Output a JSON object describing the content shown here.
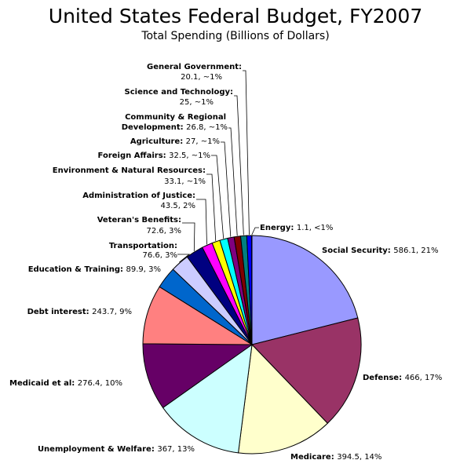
{
  "chart_data": {
    "type": "pie",
    "title": "United States Federal Budget, FY2007",
    "subtitle": "Total Spending (Billions of Dollars)",
    "slices": [
      {
        "label": "Social Security",
        "value": 586.1,
        "text": "586.1, 21%",
        "color": "#9999ff"
      },
      {
        "label": "Defense",
        "value": 466,
        "text": "466, 17%",
        "color": "#993366"
      },
      {
        "label": "Medicare",
        "value": 394.5,
        "text": "394.5, 14%",
        "color": "#ffffcc"
      },
      {
        "label": "Unemployment & Welfare",
        "value": 367,
        "text": "367, 13%",
        "color": "#ccffff"
      },
      {
        "label": "Medicaid et al",
        "value": 276.4,
        "text": "276.4, 10%",
        "color": "#660066"
      },
      {
        "label": "Debt interest",
        "value": 243.7,
        "text": "243.7, 9%",
        "color": "#ff8080"
      },
      {
        "label": "Education & Training",
        "value": 89.9,
        "text": "89.9, 3%",
        "color": "#0066cc"
      },
      {
        "label": "Transportation",
        "value": 76.6,
        "text": "76.6, 3%",
        "color": "#ccccff"
      },
      {
        "label": "Veteran's Benefits",
        "value": 72.6,
        "text": "72.6, 3%",
        "color": "#000080"
      },
      {
        "label": "Administration of Justice",
        "value": 43.5,
        "text": "43.5, 2%",
        "color": "#ff00ff"
      },
      {
        "label": "Environment & Natural Resources",
        "value": 33.1,
        "text": "33.1, ~1%",
        "color": "#ffff00"
      },
      {
        "label": "Foreign Affairs",
        "value": 32.5,
        "text": "32.5, ~1%",
        "color": "#00ffff"
      },
      {
        "label": "Agriculture",
        "value": 27,
        "text": "27, ~1%",
        "color": "#800080"
      },
      {
        "label": "Community & Regional Development",
        "value": 26.8,
        "text": "26.8, ~1%",
        "color": "#800000"
      },
      {
        "label": "Science and Technology",
        "value": 25,
        "text": "25, ~1%",
        "color": "#008080"
      },
      {
        "label": "General Government",
        "value": 20.1,
        "text": "20.1, ~1%",
        "color": "#0000ff"
      },
      {
        "label": "Energy",
        "value": 1.1,
        "text": "1.1, <1%",
        "color": "#00ccff"
      }
    ]
  }
}
